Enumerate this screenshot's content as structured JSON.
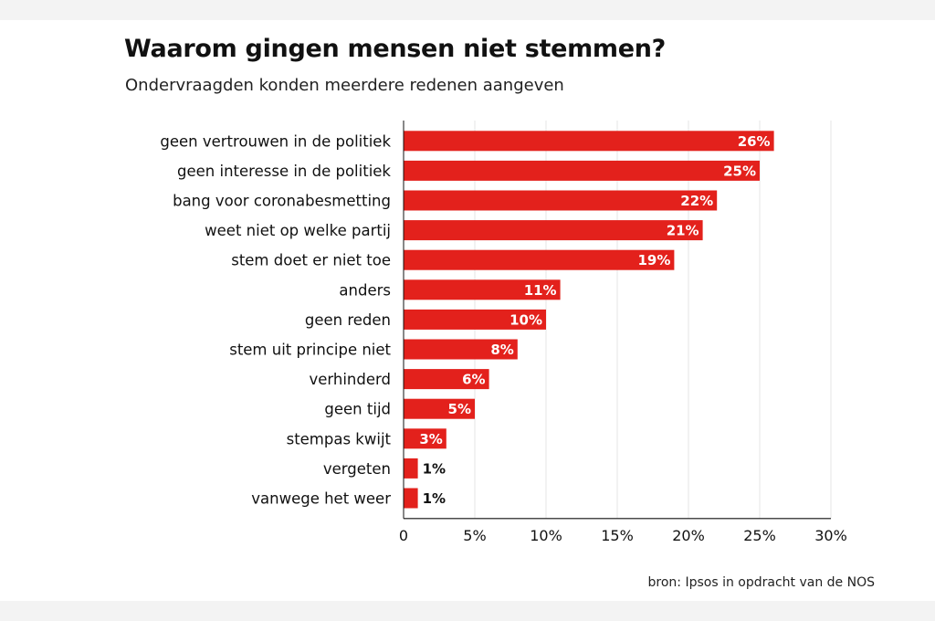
{
  "chart_data": {
    "type": "bar",
    "orientation": "horizontal",
    "title": "Waarom gingen mensen niet stemmen?",
    "subtitle": "Ondervraagden konden meerdere redenen aangeven",
    "categories": [
      "geen vertrouwen in de politiek",
      "geen interesse in de politiek",
      "bang voor coronabesmetting",
      "weet niet op welke partij",
      "stem doet er niet toe",
      "anders",
      "geen reden",
      "stem uit principe niet",
      "verhinderd",
      "geen tijd",
      "stempas kwijt",
      "vergeten",
      "vanwege het weer"
    ],
    "values": [
      26,
      25,
      22,
      21,
      19,
      11,
      10,
      8,
      6,
      5,
      3,
      1,
      1
    ],
    "value_labels": [
      "26%",
      "25%",
      "22%",
      "21%",
      "19%",
      "11%",
      "10%",
      "8%",
      "6%",
      "5%",
      "3%",
      "1%",
      "1%"
    ],
    "xlim": [
      0,
      30
    ],
    "xticks": [
      0,
      5,
      10,
      15,
      20,
      25,
      30
    ],
    "xtick_labels": [
      "0",
      "5%",
      "10%",
      "15%",
      "20%",
      "25%",
      "30%"
    ],
    "grid": true,
    "bar_color": "#e3211c",
    "source": "bron: Ipsos in opdracht van de NOS"
  }
}
